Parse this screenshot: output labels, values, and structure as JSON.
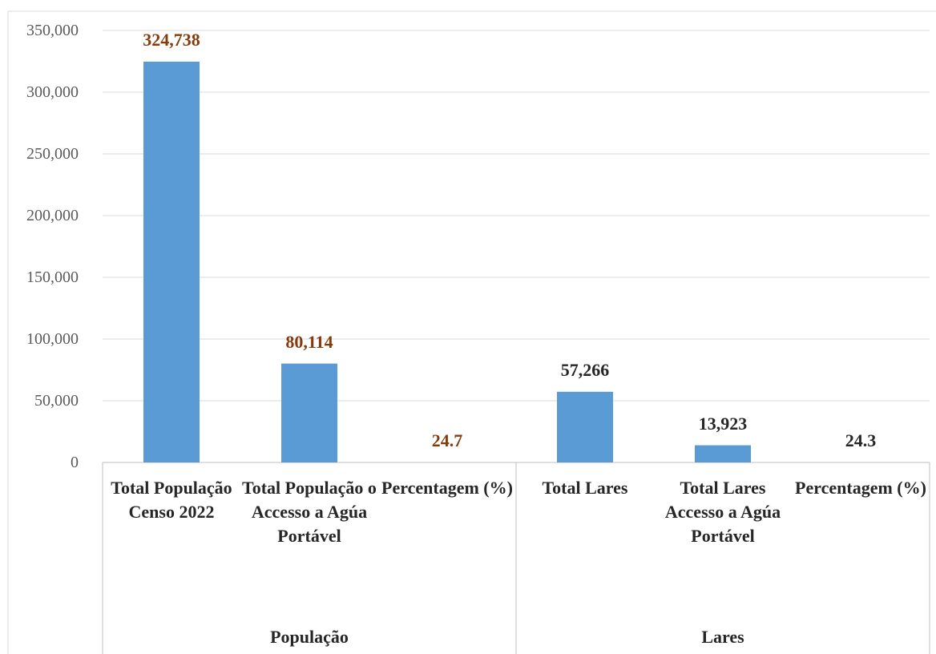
{
  "chart_data": {
    "type": "bar",
    "categories": [
      "Total População Censo 2022",
      "Total População o Accesso a Agúa Portável",
      "Percentagem (%)",
      "Total Lares",
      "Total Lares Accesso a Agúa Portável",
      "Percentagem (%)"
    ],
    "values": [
      324738,
      80114,
      24.7,
      57266,
      13923,
      24.3
    ],
    "value_labels": [
      "324,738",
      "80,114",
      "24.7",
      "57,266",
      "13,923",
      "24.3"
    ],
    "value_label_colors": [
      "#843c0c",
      "#843c0c",
      "#843c0c",
      "#262626",
      "#262626",
      "#262626"
    ],
    "color": "#5b9bd5",
    "groups": [
      {
        "name": "População",
        "size": 3
      },
      {
        "name": "Lares",
        "size": 3
      }
    ],
    "ylim": [
      0,
      350000
    ],
    "yticks": [
      0,
      {
        "value": 50000,
        "label": "50,000"
      },
      {
        "value": 100000,
        "label": "100,000"
      },
      {
        "value": 150000,
        "label": "150,000"
      },
      {
        "value": 200000,
        "label": "200,000"
      },
      {
        "value": 250000,
        "label": "250,000"
      },
      {
        "value": 300000,
        "label": "300,000"
      },
      {
        "value": 350000,
        "label": "350,000"
      }
    ],
    "grid": true
  }
}
